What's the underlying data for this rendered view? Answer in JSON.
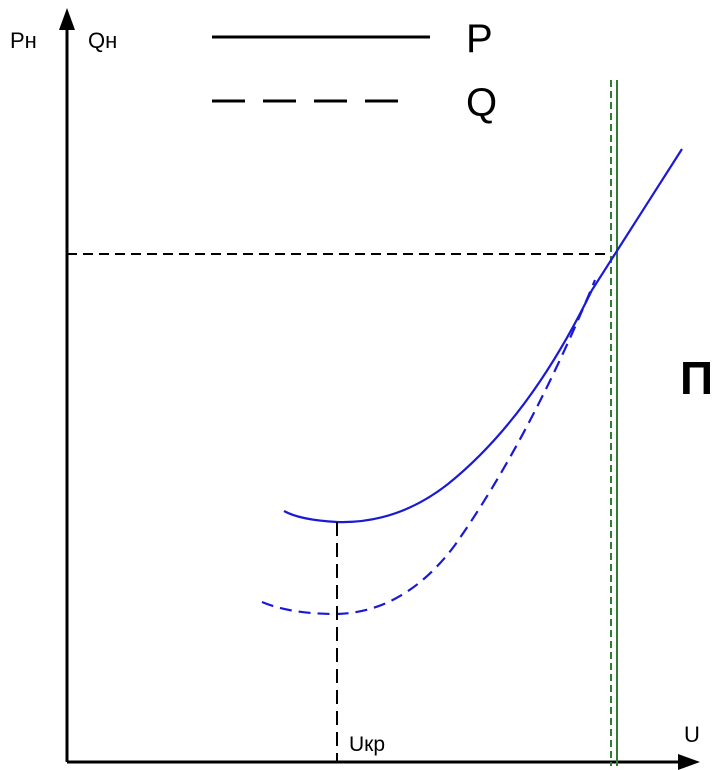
{
  "diagram": {
    "axes": {
      "y_labels": [
        "Pн",
        "Qн"
      ],
      "x_label": "U"
    },
    "legend": [
      {
        "label": "P",
        "line_style": "solid"
      },
      {
        "label": "Q",
        "line_style": "dashed"
      }
    ],
    "markers": {
      "critical_voltage_label": "Uкр"
    },
    "region_label": "П",
    "colors": {
      "axes": "#000000",
      "curves": "#1a1ad6",
      "boundary": "#2e7d32"
    }
  }
}
